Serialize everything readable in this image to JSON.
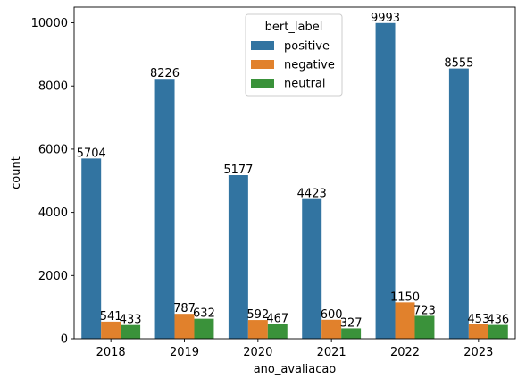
{
  "chart_data": {
    "type": "bar",
    "title": "",
    "xlabel": "ano_avaliacao",
    "ylabel": "count",
    "categories": [
      "2018",
      "2019",
      "2020",
      "2021",
      "2022",
      "2023"
    ],
    "series": [
      {
        "name": "positive",
        "color": "#3274a1",
        "values": [
          5704,
          8226,
          5177,
          4423,
          9993,
          8555
        ]
      },
      {
        "name": "negative",
        "color": "#e1812c",
        "values": [
          541,
          787,
          592,
          600,
          1150,
          453
        ]
      },
      {
        "name": "neutral",
        "color": "#3a923a",
        "values": [
          433,
          632,
          467,
          327,
          723,
          436
        ]
      }
    ],
    "ylim": [
      0,
      10496
    ],
    "yticks": [
      0,
      2000,
      4000,
      6000,
      8000,
      10000
    ],
    "ytick_labels": [
      "0",
      "2000",
      "4000",
      "6000",
      "8000",
      "10000"
    ],
    "grid": false,
    "legend": {
      "title": "bert_label",
      "placement": "top-center"
    }
  }
}
